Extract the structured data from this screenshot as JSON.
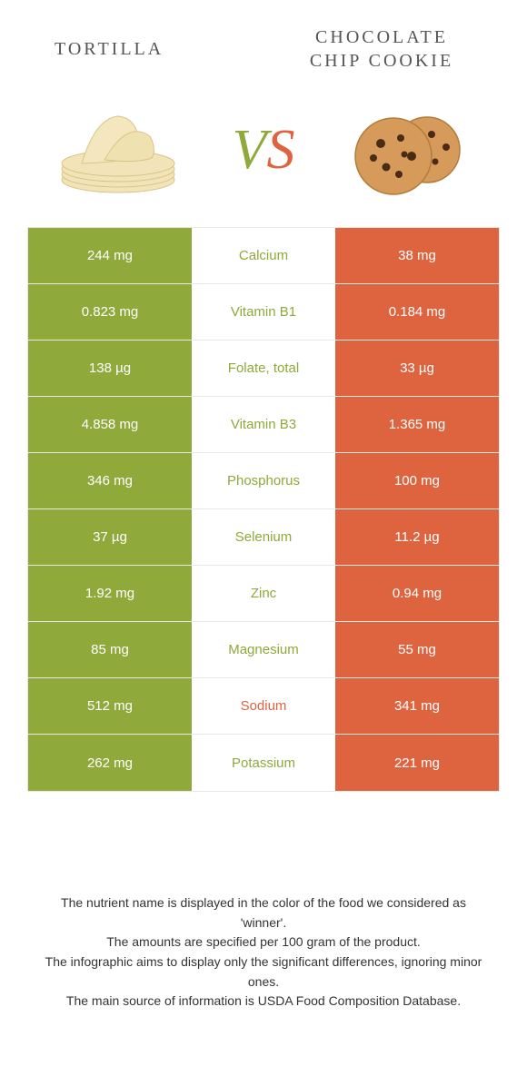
{
  "header": {
    "left_title": "TORTILLA",
    "right_title_line1": "CHOCOLATE",
    "right_title_line2": "CHIP COOKIE"
  },
  "vs": {
    "v": "V",
    "s": "S"
  },
  "colors": {
    "left": "#8fa93a",
    "right": "#de6440",
    "mid_left_text": "#8fa93a",
    "mid_right_text": "#de6440"
  },
  "rows": [
    {
      "left": "244 mg",
      "label": "Calcium",
      "right": "38 mg",
      "winner": "left"
    },
    {
      "left": "0.823 mg",
      "label": "Vitamin B1",
      "right": "0.184 mg",
      "winner": "left"
    },
    {
      "left": "138 µg",
      "label": "Folate, total",
      "right": "33 µg",
      "winner": "left"
    },
    {
      "left": "4.858 mg",
      "label": "Vitamin B3",
      "right": "1.365 mg",
      "winner": "left"
    },
    {
      "left": "346 mg",
      "label": "Phosphorus",
      "right": "100 mg",
      "winner": "left"
    },
    {
      "left": "37 µg",
      "label": "Selenium",
      "right": "11.2 µg",
      "winner": "left"
    },
    {
      "left": "1.92 mg",
      "label": "Zinc",
      "right": "0.94 mg",
      "winner": "left"
    },
    {
      "left": "85 mg",
      "label": "Magnesium",
      "right": "55 mg",
      "winner": "left"
    },
    {
      "left": "512 mg",
      "label": "Sodium",
      "right": "341 mg",
      "winner": "right"
    },
    {
      "left": "262 mg",
      "label": "Potassium",
      "right": "221 mg",
      "winner": "left"
    }
  ],
  "footer": {
    "line1": "The nutrient name is displayed in the color of the food we considered as 'winner'.",
    "line2": "The amounts are specified per 100 gram of the product.",
    "line3": "The infographic aims to display only the significant differences, ignoring minor ones.",
    "line4": "The main source of information is USDA Food Composition Database."
  }
}
